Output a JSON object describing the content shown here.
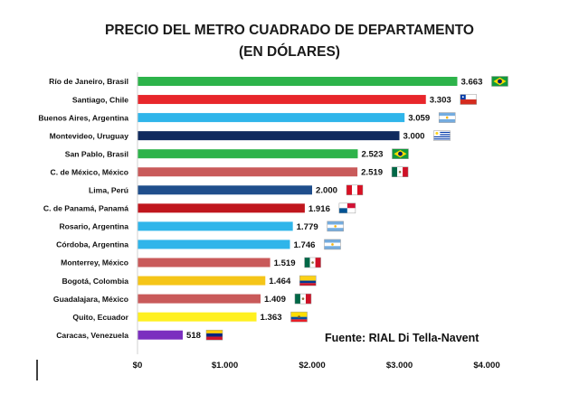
{
  "chart_data": {
    "type": "bar",
    "orientation": "horizontal",
    "title": "PRECIO DEL METRO CUADRADO DE DEPARTAMENTO",
    "subtitle": "(EN DÓLARES)",
    "source": "Fuente: RIAL Di Tella-Navent",
    "xlim": [
      0,
      4000
    ],
    "xticks": [
      0,
      1000,
      2000,
      3000,
      4000
    ],
    "xtick_labels": [
      "$0",
      "$1.000",
      "$2.000",
      "$3.000",
      "$4.000"
    ],
    "grid": false,
    "categories": [
      {
        "name": "Río de Janeiro, Brasil",
        "value": 3663,
        "label": "3.663",
        "color": "#2db34a",
        "flag": "brazil-flag-icon"
      },
      {
        "name": "Santiago, Chile",
        "value": 3303,
        "label": "3.303",
        "color": "#e8262b",
        "flag": "chile-flag-icon"
      },
      {
        "name": "Buenos Aires, Argentina",
        "value": 3059,
        "label": "3.059",
        "color": "#2fb5ea",
        "flag": "argentina-flag-icon"
      },
      {
        "name": "Montevideo, Uruguay",
        "value": 3000,
        "label": "3.000",
        "color": "#102a5e",
        "flag": "uruguay-flag-icon"
      },
      {
        "name": "San Pablo, Brasil",
        "value": 2523,
        "label": "2.523",
        "color": "#2db34a",
        "flag": "brazil-flag-icon"
      },
      {
        "name": "C. de México, México",
        "value": 2519,
        "label": "2.519",
        "color": "#c95a5a",
        "flag": "mexico-flag-icon"
      },
      {
        "name": "Lima, Perú",
        "value": 2000,
        "label": "2.000",
        "color": "#1f4e8c",
        "flag": "peru-flag-icon"
      },
      {
        "name": "C. de Panamá, Panamá",
        "value": 1916,
        "label": "1.916",
        "color": "#c0161d",
        "flag": "panama-flag-icon"
      },
      {
        "name": "Rosario, Argentina",
        "value": 1779,
        "label": "1.779",
        "color": "#2fb5ea",
        "flag": "argentina-flag-icon"
      },
      {
        "name": "Córdoba, Argentina",
        "value": 1746,
        "label": "1.746",
        "color": "#2fb5ea",
        "flag": "argentina-flag-icon"
      },
      {
        "name": "Monterrey, México",
        "value": 1519,
        "label": "1.519",
        "color": "#c95a5a",
        "flag": "mexico-flag-icon"
      },
      {
        "name": "Bogotá, Colombia",
        "value": 1464,
        "label": "1.464",
        "color": "#f5c518",
        "flag": "colombia-flag-icon"
      },
      {
        "name": "Guadalajara, México",
        "value": 1409,
        "label": "1.409",
        "color": "#c95a5a",
        "flag": "mexico-flag-icon"
      },
      {
        "name": "Quito, Ecuador",
        "value": 1363,
        "label": "1.363",
        "color": "#fff01f",
        "flag": "ecuador-flag-icon"
      },
      {
        "name": "Caracas, Venezuela",
        "value": 518,
        "label": "518",
        "color": "#7b2fbf",
        "flag": "venezuela-flag-icon"
      }
    ]
  }
}
